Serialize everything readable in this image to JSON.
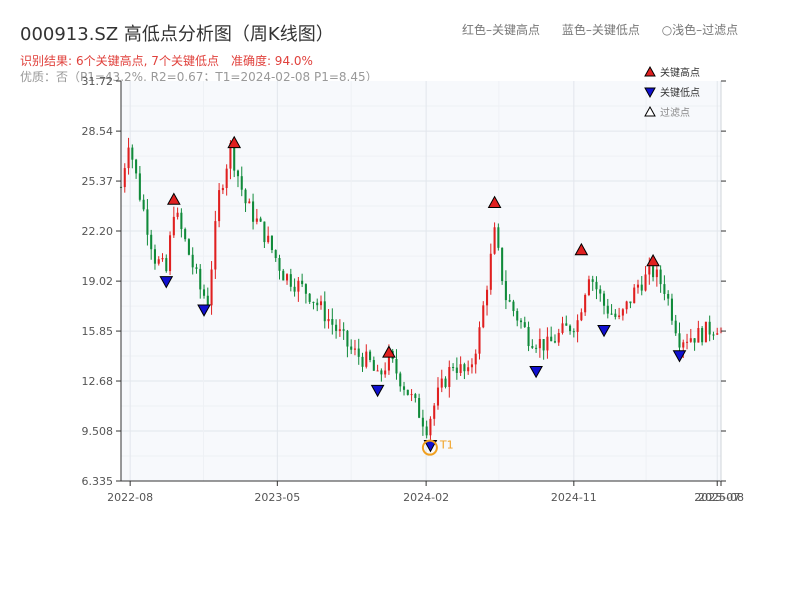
{
  "header": {
    "title": "000913.SZ 高低点分析图（周K线图）",
    "legend_red": "红色–关键高点",
    "legend_blue": "蓝色–关键低点",
    "legend_light": "○浅色–过滤点",
    "result_prefix": "识别结果:",
    "result_counts": "6个关键高点, 7个关键低点",
    "accuracy": "准确度: 94.0%",
    "quality": "优质：否（P1=43.2%, R2=0.67；T1=2024-02-08 P1=8.45）"
  },
  "colors": {
    "up": "#e02020",
    "down": "#108a3a",
    "high_marker": "#e02020",
    "low_marker": "#1010d0",
    "filtered_marker": "#ffffff",
    "t1_marker": "#f0a020",
    "plot_bg": "#f7f9fc",
    "grid": "#e2e6ec"
  },
  "chart_data": {
    "type": "candlestick",
    "title": "000913.SZ 高低点分析图（周K线图）",
    "x_ticks": [
      "2022-08",
      "2023-05",
      "2024-02",
      "2024-11",
      "2025-07",
      "2025-08"
    ],
    "y_ticks": [
      "6.335",
      "9.508",
      "12.68",
      "15.85",
      "19.02",
      "22.20",
      "25.37",
      "28.54",
      "31.72"
    ],
    "ylim": [
      6.335,
      31.72
    ],
    "xlim": [
      "2022-07-15",
      "2025-08-01"
    ],
    "grid": true,
    "legend": {
      "position": "top-right",
      "entries": [
        {
          "symbol": "triangle-up",
          "label": "关键高点",
          "color": "#e02020"
        },
        {
          "symbol": "triangle-down",
          "label": "关键低点",
          "color": "#1010d0"
        },
        {
          "symbol": "triangle-up-outline",
          "label": "过滤点",
          "color": "#ffffff"
        }
      ]
    },
    "trend_points": [
      [
        "2022-07-15",
        25.0
      ],
      [
        "2022-07-29",
        28.0
      ],
      [
        "2022-08-19",
        24.5
      ],
      [
        "2022-09-16",
        20.5
      ],
      [
        "2022-10-07",
        19.6
      ],
      [
        "2022-10-21",
        23.6
      ],
      [
        "2022-11-11",
        21.5
      ],
      [
        "2022-12-09",
        18.5
      ],
      [
        "2022-12-23",
        17.8
      ],
      [
        "2023-01-13",
        24.5
      ],
      [
        "2023-02-03",
        27.5
      ],
      [
        "2023-03-03",
        24.0
      ],
      [
        "2023-04-07",
        22.0
      ],
      [
        "2023-05-12",
        19.5
      ],
      [
        "2023-06-30",
        18.2
      ],
      [
        "2023-08-11",
        16.3
      ],
      [
        "2023-09-15",
        14.6
      ],
      [
        "2023-10-20",
        13.8
      ],
      [
        "2023-11-03",
        12.8
      ],
      [
        "2023-11-24",
        14.1
      ],
      [
        "2023-12-29",
        12.0
      ],
      [
        "2024-02-02",
        9.8
      ],
      [
        "2024-02-23",
        11.8
      ],
      [
        "2024-03-22",
        13.8
      ],
      [
        "2024-04-19",
        13.0
      ],
      [
        "2024-05-10",
        15.8
      ],
      [
        "2024-06-07",
        22.0
      ],
      [
        "2024-06-28",
        18.0
      ],
      [
        "2024-08-09",
        15.5
      ],
      [
        "2024-09-13",
        14.9
      ],
      [
        "2024-10-11",
        15.8
      ],
      [
        "2024-11-08",
        16.5
      ],
      [
        "2024-11-29",
        19.6
      ],
      [
        "2024-12-27",
        17.5
      ],
      [
        "2025-01-24",
        16.5
      ],
      [
        "2025-02-28",
        18.8
      ],
      [
        "2025-03-28",
        19.6
      ],
      [
        "2025-04-18",
        18.6
      ],
      [
        "2025-05-16",
        15.4
      ],
      [
        "2025-06-20",
        15.6
      ],
      [
        "2025-07-25",
        16.2
      ],
      [
        "2025-08-01",
        16.0
      ]
    ],
    "key_highs": [
      {
        "date": "2022-10-21",
        "value": 24.2
      },
      {
        "date": "2023-02-10",
        "value": 27.8
      },
      {
        "date": "2023-11-24",
        "value": 14.5
      },
      {
        "date": "2024-06-07",
        "value": 24.0
      },
      {
        "date": "2024-11-15",
        "value": 21.0
      },
      {
        "date": "2025-03-28",
        "value": 20.3
      }
    ],
    "key_lows": [
      {
        "date": "2022-10-07",
        "value": 19.0
      },
      {
        "date": "2022-12-16",
        "value": 17.2
      },
      {
        "date": "2023-11-03",
        "value": 12.1
      },
      {
        "date": "2024-02-09",
        "value": 8.6
      },
      {
        "date": "2024-08-23",
        "value": 13.3
      },
      {
        "date": "2024-12-27",
        "value": 15.9
      },
      {
        "date": "2025-05-16",
        "value": 14.3
      }
    ],
    "t1": {
      "date": "2024-02-08",
      "value": 8.45,
      "label": "T1"
    }
  }
}
